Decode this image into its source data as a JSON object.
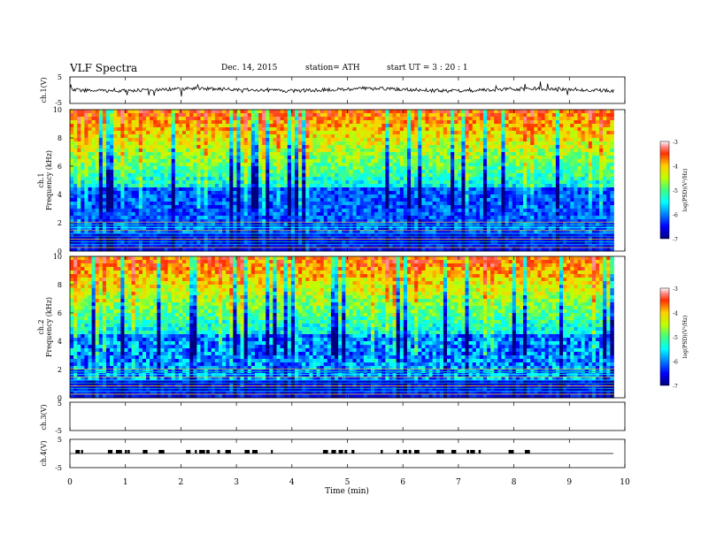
{
  "header": {
    "title": "VLF  Spectra",
    "date": "Dec. 14, 2015",
    "station": "station= ATH",
    "start": "start  UT  =   3  : 20 : 1"
  },
  "chart_data": [
    {
      "type": "line",
      "ylabel": "ch.1(V)",
      "yticks": [
        "5",
        "-5"
      ],
      "ylim": [
        -5,
        5
      ],
      "description_level": 0.3
    },
    {
      "type": "heatmap",
      "ylabel": "Frequency  (kHz)",
      "channel": "ch.1",
      "yticks": [
        "10",
        "8",
        "6",
        "4",
        "2",
        "0"
      ],
      "ylim": [
        0,
        10
      ],
      "colorbar_label": "log(PSD)(V²/Hz)",
      "colorbar_ticks": [
        "-3",
        "-4",
        "-5",
        "-6",
        "-7"
      ],
      "colorbar_range": [
        -7,
        -3
      ]
    },
    {
      "type": "heatmap",
      "ylabel": "Frequency  (kHz)",
      "channel": "ch.2",
      "yticks": [
        "10",
        "8",
        "6",
        "4",
        "2",
        "0"
      ],
      "ylim": [
        0,
        10
      ],
      "colorbar_label": "log(PSD)(V²/Hz)",
      "colorbar_ticks": [
        "-3",
        "-4",
        "-5",
        "-6",
        "-7"
      ],
      "colorbar_range": [
        -7,
        -3
      ]
    },
    {
      "type": "line",
      "ylabel": "ch.3(V)",
      "yticks": [
        "5",
        "-5"
      ],
      "ylim": [
        -5,
        5
      ]
    },
    {
      "type": "line",
      "ylabel": "ch.4(V)",
      "yticks": [
        "5",
        "-5"
      ],
      "ylim": [
        -5,
        5
      ]
    }
  ],
  "xaxis": {
    "label": "Time  (min)",
    "ticks": [
      "0",
      "1",
      "2",
      "3",
      "4",
      "5",
      "6",
      "7",
      "8",
      "9",
      "10"
    ],
    "range": [
      0,
      10
    ]
  }
}
